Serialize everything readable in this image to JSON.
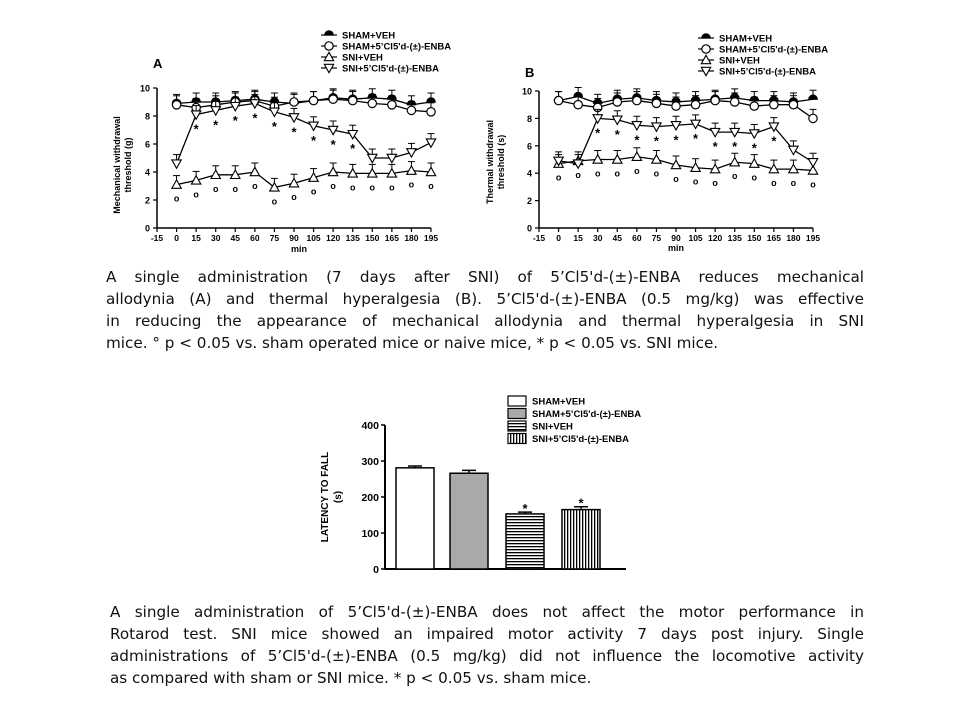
{
  "legend_entries": [
    "SHAM+VEH",
    "SHAM+5’Cl5'd-(±)-ENBA",
    "SNI+VEH",
    "SNI+5’Cl5'd-(±)-ENBA"
  ],
  "panels": {
    "A": {
      "label": "A",
      "ylabel_line1": "Mechanical withdrawal",
      "ylabel_line2": "threshold (g)",
      "xlabel": "min"
    },
    "B": {
      "label": "B",
      "ylabel_line1": "Thermal withdrawal",
      "ylabel_line2": "threshold (s)",
      "xlabel": "min"
    },
    "C": {
      "ylabel_line1": "LATENCY TO FALL",
      "ylabel_line2": "(s)"
    }
  },
  "captions": {
    "top": [
      "A single administration (7 days after SNI) of 5’Cl5'd-(±)-ENBA reduces mechanical",
      "allodynia (A) and thermal hyperalgesia (B). 5’Cl5'd-(±)-ENBA (0.5 mg/kg) was effective",
      "in reducing the appearance of mechanical allodynia and thermal hyperalgesia in SNI",
      "mice. ° p < 0.05 vs. sham operated mice or naive mice, * p < 0.05 vs. SNI mice."
    ],
    "bottom": [
      "A single administration of 5’Cl5'd-(±)-ENBA does not affect the motor performance in",
      "Rotarod test. SNI mice showed an impaired motor activity 7 days post injury. Single",
      "administrations of 5’Cl5'd-(±)-ENBA (0.5 mg/kg) did not influence the locomotive activity",
      "as compared with sham or SNI mice. * p < 0.05 vs. sham mice."
    ]
  },
  "chart_data": [
    {
      "type": "line",
      "panel": "A",
      "xlabel": "min",
      "ylabel": "Mechanical withdrawal threshold (g)",
      "x": [
        -15,
        0,
        15,
        30,
        45,
        60,
        75,
        90,
        105,
        120,
        135,
        150,
        165,
        180,
        195
      ],
      "x_ticks": [
        -15,
        0,
        15,
        30,
        45,
        60,
        75,
        90,
        105,
        120,
        135,
        150,
        165,
        180,
        195
      ],
      "y_ticks": [
        0,
        2,
        4,
        6,
        8,
        10
      ],
      "xlim": [
        -15,
        195
      ],
      "ylim": [
        0,
        10
      ],
      "series": [
        {
          "name": "SHAM+VEH",
          "marker": "circle-filled",
          "x": [
            0,
            15,
            30,
            45,
            60,
            75,
            90,
            105,
            120,
            135,
            150,
            165,
            180,
            195
          ],
          "y": [
            8.9,
            9.0,
            9.0,
            9.1,
            9.2,
            9.0,
            8.9,
            9.1,
            9.3,
            9.2,
            9.3,
            9.2,
            8.8,
            9.0
          ]
        },
        {
          "name": "SHAM+5’Cl5'd-(±)-ENBA",
          "marker": "circle-open",
          "x": [
            0,
            15,
            30,
            45,
            60,
            75,
            90,
            105,
            120,
            135,
            150,
            165,
            180,
            195
          ],
          "y": [
            8.8,
            8.6,
            8.8,
            9.0,
            9.1,
            8.7,
            9.0,
            9.1,
            9.2,
            9.1,
            8.9,
            8.8,
            8.4,
            8.3
          ]
        },
        {
          "name": "SNI+VEH",
          "marker": "triangle-up",
          "x": [
            0,
            15,
            30,
            45,
            60,
            75,
            90,
            105,
            120,
            135,
            150,
            165,
            180,
            195
          ],
          "y": [
            3.1,
            3.4,
            3.8,
            3.8,
            4.0,
            2.9,
            3.2,
            3.6,
            4.0,
            3.9,
            3.9,
            3.9,
            4.1,
            4.0
          ]
        },
        {
          "name": "SNI+5’Cl5'd-(±)-ENBA",
          "marker": "triangle-down",
          "x": [
            0,
            15,
            30,
            45,
            60,
            75,
            90,
            105,
            120,
            135,
            150,
            165,
            180,
            195
          ],
          "y": [
            4.6,
            8.1,
            8.4,
            8.7,
            8.9,
            8.3,
            7.9,
            7.3,
            7.0,
            6.7,
            5.0,
            5.0,
            5.4,
            6.1
          ]
        }
      ],
      "stars": [
        15,
        30,
        45,
        60,
        75,
        90,
        105,
        120,
        135
      ],
      "degrees": [
        0,
        15,
        30,
        45,
        60,
        75,
        90,
        105,
        120,
        135,
        150,
        165,
        180,
        195
      ]
    },
    {
      "type": "line",
      "panel": "B",
      "xlabel": "min",
      "ylabel": "Thermal withdrawal threshold (s)",
      "x": [
        -15,
        0,
        15,
        30,
        45,
        60,
        75,
        90,
        105,
        120,
        135,
        150,
        165,
        180,
        195
      ],
      "x_ticks": [
        -15,
        0,
        15,
        30,
        45,
        60,
        75,
        90,
        105,
        120,
        135,
        150,
        165,
        180,
        195
      ],
      "y_ticks": [
        0,
        2,
        4,
        6,
        8,
        10
      ],
      "xlim": [
        -15,
        195
      ],
      "ylim": [
        0,
        10
      ],
      "series": [
        {
          "name": "SHAM+VEH",
          "marker": "circle-filled",
          "x": [
            0,
            15,
            30,
            45,
            60,
            75,
            90,
            105,
            120,
            135,
            150,
            165,
            180,
            195
          ],
          "y": [
            9.3,
            9.6,
            9.1,
            9.4,
            9.5,
            9.3,
            9.2,
            9.3,
            9.4,
            9.5,
            9.3,
            9.3,
            9.2,
            9.4
          ]
        },
        {
          "name": "SHAM+5’Cl5'd-(±)-ENBA",
          "marker": "circle-open",
          "x": [
            0,
            15,
            30,
            45,
            60,
            75,
            90,
            105,
            120,
            135,
            150,
            165,
            180,
            195
          ],
          "y": [
            9.3,
            9.0,
            8.8,
            9.2,
            9.3,
            9.1,
            8.9,
            9.0,
            9.3,
            9.2,
            8.9,
            9.0,
            9.0,
            8.0
          ]
        },
        {
          "name": "SNI+VEH",
          "marker": "triangle-up",
          "x": [
            0,
            15,
            30,
            45,
            60,
            75,
            90,
            105,
            120,
            135,
            150,
            165,
            180,
            195
          ],
          "y": [
            4.7,
            4.9,
            5.0,
            5.0,
            5.2,
            5.0,
            4.6,
            4.4,
            4.3,
            4.8,
            4.7,
            4.3,
            4.3,
            4.2
          ]
        },
        {
          "name": "SNI+5’Cl5'd-(±)-ENBA",
          "marker": "triangle-down",
          "x": [
            0,
            15,
            30,
            45,
            60,
            75,
            90,
            105,
            120,
            135,
            150,
            165,
            180,
            195
          ],
          "y": [
            4.9,
            4.7,
            8.0,
            7.9,
            7.5,
            7.4,
            7.5,
            7.6,
            7.0,
            7.0,
            6.9,
            7.4,
            5.7,
            4.8
          ]
        }
      ],
      "stars": [
        30,
        45,
        60,
        75,
        90,
        105,
        120,
        135,
        150,
        165
      ],
      "degrees": [
        0,
        15,
        30,
        45,
        60,
        75,
        90,
        105,
        120,
        135,
        150,
        165,
        180,
        195
      ]
    },
    {
      "type": "bar",
      "panel": "C",
      "ylabel": "LATENCY TO FALL (s)",
      "categories": [
        "SHAM+VEH",
        "SHAM+5’Cl5'd-(±)-ENBA",
        "SNI+VEH",
        "SNI+5’Cl5'd-(±)-ENBA"
      ],
      "values": [
        281,
        266,
        153,
        165
      ],
      "errors": [
        5,
        8,
        5,
        8
      ],
      "fills": [
        "#ffffff",
        "#a9a9a9",
        "horizontal-stripes",
        "vertical-stripes"
      ],
      "y_ticks": [
        0,
        100,
        200,
        300,
        400
      ],
      "ylim": [
        0,
        400
      ],
      "stars": [
        false,
        false,
        true,
        true
      ]
    }
  ]
}
